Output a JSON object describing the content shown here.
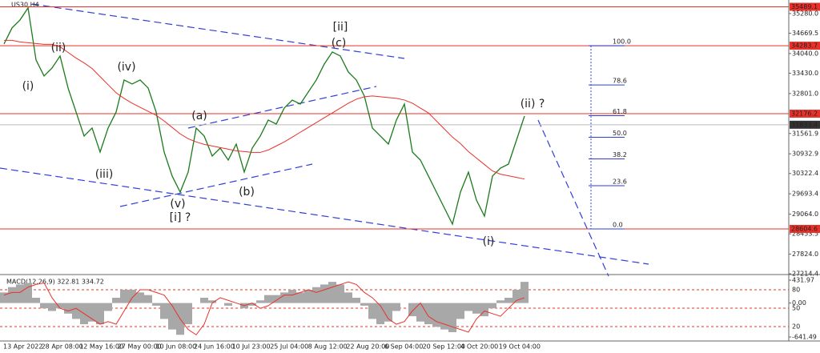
{
  "chart_data": [
    {
      "type": "line",
      "title": "US30,H4",
      "ylim": [
        27214.4,
        35700
      ],
      "yticks": [
        {
          "value": 35280,
          "label": "35280.0"
        },
        {
          "value": 34669.5,
          "label": "34669.5"
        },
        {
          "value": 34040,
          "label": "34040.0"
        },
        {
          "value": 33430,
          "label": "33430.0"
        },
        {
          "value": 32801,
          "label": "32801.0"
        },
        {
          "value": 31561.9,
          "label": "31561.9"
        },
        {
          "value": 30932.9,
          "label": "30932.9"
        },
        {
          "value": 30322.4,
          "label": "30322.4"
        },
        {
          "value": 29693.4,
          "label": "29693.4"
        },
        {
          "value": 29064,
          "label": "29064.0"
        },
        {
          "value": 28453.5,
          "label": "28453.5"
        },
        {
          "value": 27824,
          "label": "27824.0"
        },
        {
          "value": 27214.4,
          "label": "27214.4"
        }
      ],
      "xtick_labels": [
        "13 Apr 2022",
        "28 Apr 08:00",
        "12 May 16:00",
        "27 May 00:00",
        "10 Jun 08:00",
        "24 Jun 16:00",
        "10 Jul 23:00",
        "25 Jul 04:00",
        "8 Aug 12:00",
        "22 Aug 20:00",
        "6 Sep 04:00",
        "20 Sep 12:00",
        "4 Oct 20:00",
        "19 Oct 04:00"
      ],
      "series": [
        {
          "color": "#1b7a1b",
          "values": [
            34337,
            34833,
            35082,
            35454,
            33840,
            33344,
            33592,
            33965,
            32972,
            32227,
            31483,
            31731,
            30986,
            31731,
            32227,
            33220,
            33096,
            33220,
            32972,
            32227,
            30986,
            30242,
            29745,
            30366,
            31731,
            31483,
            30862,
            31110,
            30738,
            31234,
            30366,
            31110,
            31483,
            31979,
            31855,
            32351,
            32599,
            32475,
            32848,
            33220,
            33716,
            34089,
            33965,
            33468,
            33220,
            32724,
            31731,
            31483,
            31234,
            31979,
            32475,
            30986,
            30738,
            30242,
            29745,
            29249,
            28752,
            29745,
            30366,
            29497,
            29001,
            30242,
            30490,
            30614,
            31358,
            32103
          ]
        },
        {
          "color": "#e8312a",
          "values": [
            34450,
            34450,
            34400,
            34375,
            34350,
            34325,
            34325,
            34250,
            34075,
            33900,
            33750,
            33575,
            33325,
            33075,
            32825,
            32650,
            32500,
            32375,
            32250,
            32125,
            31950,
            31750,
            31550,
            31400,
            31300,
            31225,
            31175,
            31125,
            31075,
            31025,
            31000,
            30975,
            30975,
            31050,
            31175,
            31300,
            31450,
            31600,
            31750,
            31900,
            32050,
            32200,
            32350,
            32500,
            32625,
            32700,
            32725,
            32700,
            32675,
            32650,
            32600,
            32500,
            32350,
            32200,
            31950,
            31700,
            31450,
            31250,
            31000,
            30800,
            30600,
            30400,
            30300,
            30250,
            30200,
            30150
          ]
        }
      ],
      "hlines": [
        {
          "value": 35489.1,
          "label": "35489.1"
        },
        {
          "value": 34283.7,
          "label": "34283.7"
        },
        {
          "value": 32176.2,
          "label": "32176.2"
        },
        {
          "value": 28604.6,
          "label": "28604.6"
        }
      ],
      "hline_color": "#e8312a",
      "current_price": {
        "value": 31833.4,
        "label": "31833.4"
      },
      "fib_levels": [
        {
          "value": 100,
          "label": "100.0"
        },
        78.6,
        61.8,
        {
          "value": 50,
          "label": "50.0"
        },
        38.2,
        23.6,
        {
          "value": 0,
          "label": "0.0"
        }
      ],
      "annotations": [
        {
          "text": "(i)",
          "color": "#2f3fd8"
        },
        {
          "text": "(ii)",
          "color": "#2f3fd8"
        },
        {
          "text": "(iii)",
          "color": "#2f3fd8"
        },
        {
          "text": "(iv)",
          "color": "#2f3fd8"
        },
        {
          "text": "(v)",
          "color": "#2f3fd8"
        },
        {
          "text": "(a)",
          "color": "#2f3fd8"
        },
        {
          "text": "(b)",
          "color": "#2f3fd8"
        },
        {
          "text": "(c)",
          "color": "#2f3fd8"
        },
        {
          "text": "[ii]",
          "color": "#2e8b2e"
        },
        {
          "text": "[i] ?",
          "color": "#2e8b2e"
        },
        {
          "text": "(i)",
          "color": "#2f3fd8"
        },
        {
          "text": "(ii) ?",
          "color": "#2f3fd8"
        }
      ]
    },
    {
      "type": "macd",
      "title": "MACD(12,26,9) 322.81 334.72",
      "ylim": [
        -641.49,
        431.97
      ],
      "yticks": [
        431.97,
        {
          "value": 0,
          "label": "0.00"
        },
        -641.49
      ],
      "y2lim": [
        3.04,
        95.65
      ],
      "y2ticks": [
        80,
        50,
        20
      ],
      "series": [
        {
          "color": "#a8a8a8",
          "values": [
            200,
            300,
            350,
            380,
            100,
            -100,
            -150,
            -100,
            -200,
            -300,
            -400,
            -350,
            -400,
            -150,
            100,
            250,
            250,
            200,
            150,
            -50,
            -300,
            -500,
            -600,
            -400,
            0,
            100,
            50,
            0,
            -50,
            0,
            -100,
            -50,
            50,
            150,
            150,
            200,
            250,
            200,
            250,
            300,
            350,
            400,
            350,
            200,
            100,
            -50,
            -300,
            -400,
            -350,
            -150,
            0,
            -250,
            -350,
            -400,
            -450,
            -500,
            -550,
            -300,
            -150,
            -200,
            -250,
            -100,
            50,
            100,
            250,
            400
          ]
        },
        {
          "color": "#e8312a",
          "values": [
            150,
            200,
            200,
            300,
            350,
            380,
            100,
            -100,
            -150,
            -100,
            -200,
            -300,
            -400,
            -350,
            -400,
            -150,
            100,
            250,
            250,
            200,
            150,
            -50,
            -300,
            -500,
            -600,
            -400,
            0,
            100,
            50,
            0,
            -50,
            0,
            -100,
            -50,
            50,
            150,
            150,
            200,
            250,
            200,
            250,
            300,
            350,
            400,
            350,
            200,
            100,
            -50,
            -300,
            -400,
            -350,
            -150,
            0,
            -250,
            -350,
            -400,
            -450,
            -500,
            -550,
            -300,
            -150,
            -200,
            -250,
            -100,
            50,
            100
          ]
        }
      ],
      "level_color": "#e8312a"
    }
  ]
}
